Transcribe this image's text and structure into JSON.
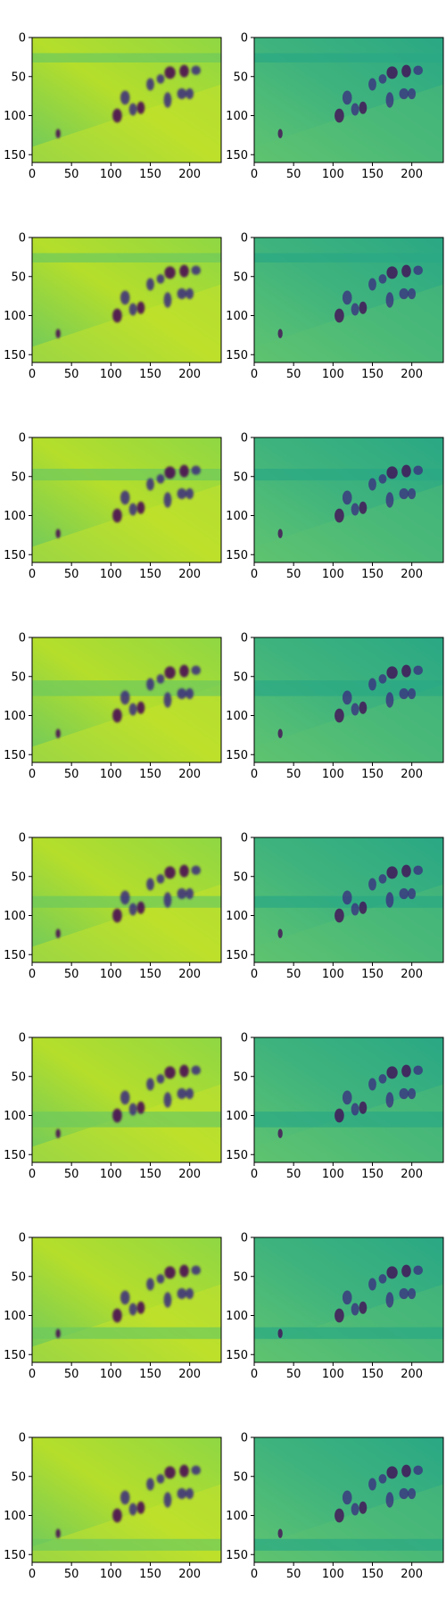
{
  "figure": {
    "rows": 8,
    "cols": 2,
    "colors": {
      "left_base": "#6cc95e",
      "left_light": "#c4e12b",
      "right_base": "#2aa884",
      "right_light": "#5fc470",
      "dark_blob": "#3b2a7f",
      "darkest_blob": "#440154",
      "spine": "#000000",
      "text": "#000000"
    }
  },
  "chart_data": {
    "type": "heatmap",
    "panel_count": 16,
    "xlim": [
      0,
      240
    ],
    "ylim": [
      0,
      160
    ],
    "y_inverted": true,
    "grid": false,
    "x_ticks": [
      0,
      50,
      100,
      150,
      200
    ],
    "y_ticks": [
      0,
      50,
      100,
      150
    ],
    "x_tick_labels": [
      "0",
      "50",
      "100",
      "150",
      "200"
    ],
    "y_tick_labels": [
      "0",
      "50",
      "100",
      "150"
    ],
    "band_y_ranges_data": [
      [
        20,
        32
      ],
      [
        20,
        32
      ],
      [
        40,
        55
      ],
      [
        55,
        75
      ],
      [
        75,
        90
      ],
      [
        95,
        115
      ],
      [
        115,
        130
      ],
      [
        130,
        145
      ]
    ],
    "blobs": [
      {
        "x": 108,
        "y": 100,
        "rx": 6,
        "ry": 9
      },
      {
        "x": 118,
        "y": 77,
        "rx": 6,
        "ry": 9
      },
      {
        "x": 128,
        "y": 92,
        "rx": 5,
        "ry": 8
      },
      {
        "x": 138,
        "y": 90,
        "rx": 5,
        "ry": 8
      },
      {
        "x": 150,
        "y": 60,
        "rx": 5,
        "ry": 8
      },
      {
        "x": 172,
        "y": 80,
        "rx": 5,
        "ry": 10
      },
      {
        "x": 175,
        "y": 45,
        "rx": 7,
        "ry": 8
      },
      {
        "x": 190,
        "y": 72,
        "rx": 6,
        "ry": 7
      },
      {
        "x": 200,
        "y": 72,
        "rx": 5,
        "ry": 7
      },
      {
        "x": 193,
        "y": 43,
        "rx": 6,
        "ry": 8
      },
      {
        "x": 208,
        "y": 42,
        "rx": 6,
        "ry": 6
      },
      {
        "x": 163,
        "y": 53,
        "rx": 5,
        "ry": 6
      },
      {
        "x": 33,
        "y": 123,
        "rx": 3,
        "ry": 6
      }
    ]
  }
}
